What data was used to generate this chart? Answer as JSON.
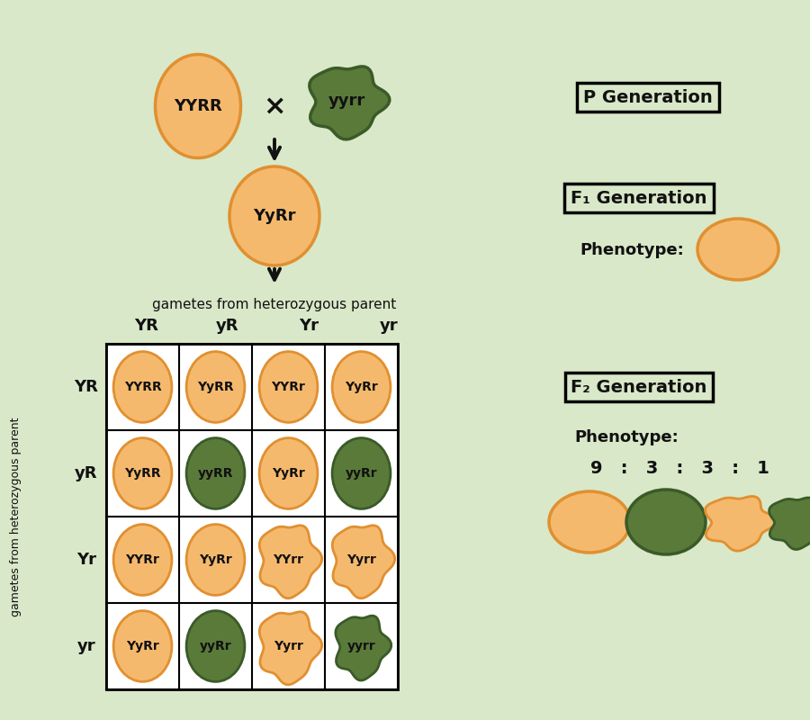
{
  "bg_color": "#d9e8c8",
  "orange_fill": "#f5b96e",
  "orange_edge": "#e09030",
  "green_fill": "#5a7a3a",
  "green_edge": "#3a5a28",
  "text_color": "#111111",
  "p_gen_label": "P Generation",
  "f1_gen_label": "F₁ Generation",
  "f2_gen_label": "F₂ Generation",
  "phenotype_label": "Phenotype:",
  "ratio_label": "9   :   3   :   3   :   1",
  "gametes_label": "gametes from heterozygous parent",
  "side_label": "gametes from heterozygous parent",
  "col_headers": [
    "YR",
    "yR",
    "Yr",
    "yr"
  ],
  "row_headers": [
    "YR",
    "yR",
    "Yr",
    "yr"
  ],
  "grid_genotypes": [
    [
      "YYRR",
      "YyRR",
      "YYRr",
      "YyRr"
    ],
    [
      "YyRR",
      "yyRR",
      "YyRr",
      "yyRr"
    ],
    [
      "YYRr",
      "YyRr",
      "YYrr",
      "Yyrr"
    ],
    [
      "YyRr",
      "yyRr",
      "Yyrr",
      "yyrr"
    ]
  ],
  "grid_colors": [
    [
      "orange",
      "orange",
      "orange",
      "orange"
    ],
    [
      "orange",
      "green",
      "orange",
      "green"
    ],
    [
      "orange",
      "orange",
      "blob_orange",
      "blob_orange"
    ],
    [
      "orange",
      "green",
      "blob_orange",
      "blob_green"
    ]
  ],
  "p1_label": "YYRR",
  "p2_label": "yyrr",
  "f1_label": "YyRr",
  "cross_symbol": "×"
}
